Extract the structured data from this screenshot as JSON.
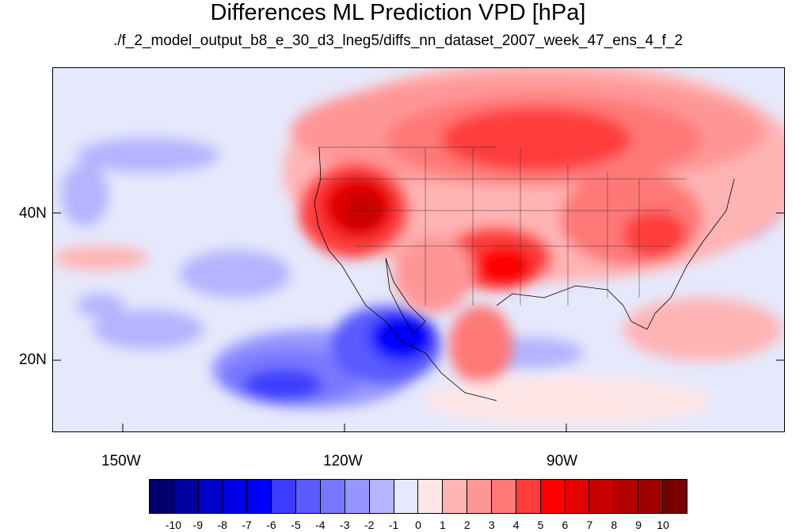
{
  "title": "Differences ML Prediction VPD [hPa]",
  "subtitle": "./f_2_model_output_b8_e_30_d3_lneg5/diffs_nn_dataset_2007_week_47_ens_4_f_2",
  "map": {
    "lat_labels": [
      "40N",
      "20N"
    ],
    "lon_labels": [
      "150W",
      "120W",
      "90W"
    ],
    "ocean_color": "#e6e8fb"
  },
  "colorbar": {
    "colors": [
      "#00006e",
      "#0000a0",
      "#0000c8",
      "#0000e6",
      "#0000ff",
      "#3c3cff",
      "#5a5aff",
      "#7878ff",
      "#9696ff",
      "#b4b4ff",
      "#e6e8fb",
      "#ffe6e6",
      "#ffb4b4",
      "#ff9696",
      "#ff7878",
      "#ff3c3c",
      "#ff0000",
      "#e60000",
      "#c80000",
      "#b40000",
      "#a00000",
      "#780000"
    ],
    "tick_labels": [
      "-10",
      "-9",
      "-8",
      "-7",
      "-6",
      "-5",
      "-4",
      "-3",
      "-2",
      "-1",
      "0",
      "1",
      "2",
      "3",
      "4",
      "5",
      "6",
      "7",
      "8",
      "9",
      "10"
    ]
  }
}
